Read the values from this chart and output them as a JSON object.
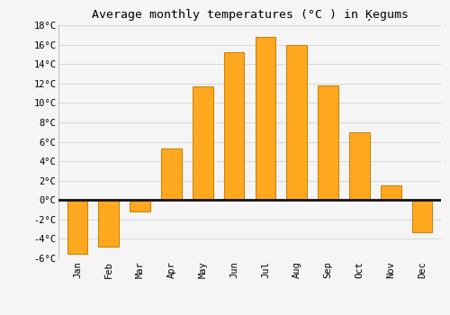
{
  "title": "Average monthly temperatures (°C ) in Ķegums",
  "months": [
    "Jan",
    "Feb",
    "Mar",
    "Apr",
    "May",
    "Jun",
    "Jul",
    "Aug",
    "Sep",
    "Oct",
    "Nov",
    "Dec"
  ],
  "values": [
    -5.5,
    -4.8,
    -1.2,
    5.3,
    11.7,
    15.2,
    16.8,
    16.0,
    11.8,
    7.0,
    1.5,
    -3.3
  ],
  "bar_color": "#FFA820",
  "bar_edge_color": "#C8860A",
  "background_color": "#f5f5f5",
  "plot_bg_color": "#f5f5f5",
  "grid_color": "#d8d8d8",
  "zero_line_color": "#111111",
  "ylim": [
    -6,
    18
  ],
  "yticks": [
    -6,
    -4,
    -2,
    0,
    2,
    4,
    6,
    8,
    10,
    12,
    14,
    16,
    18
  ],
  "title_fontsize": 9.5,
  "tick_fontsize": 7.5,
  "font_family": "monospace"
}
